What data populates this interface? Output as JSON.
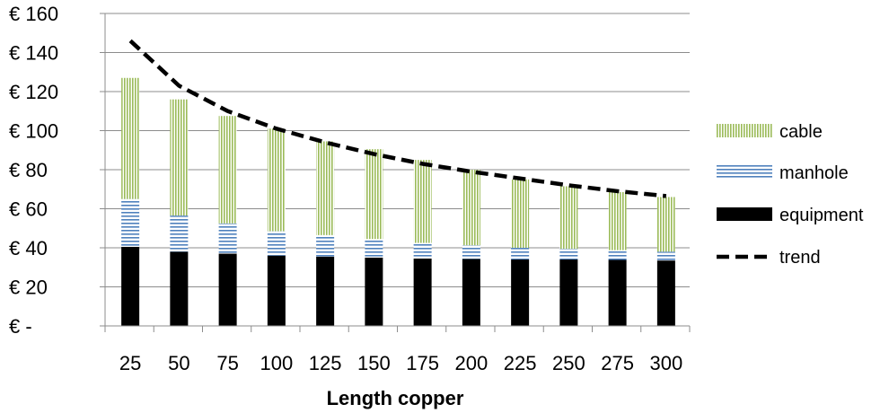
{
  "chart_data": {
    "type": "bar",
    "stacked": true,
    "xlabel": "Length copper",
    "categories": [
      "25",
      "50",
      "75",
      "100",
      "125",
      "150",
      "175",
      "200",
      "225",
      "250",
      "275",
      "300"
    ],
    "y_tick_labels": [
      "€ -",
      "€ 20",
      "€ 40",
      "€ 60",
      "€ 80",
      "€ 100",
      "€ 120",
      "€ 140",
      "€ 160"
    ],
    "ylim": [
      0,
      160
    ],
    "grid": true,
    "legend": "right",
    "series": [
      {
        "name": "equipment",
        "kind": "bar",
        "color": "#000000",
        "values": [
          40.5,
          38,
          37,
          36,
          35.5,
          35,
          34.5,
          34.3,
          34,
          34,
          33.8,
          33.5
        ]
      },
      {
        "name": "manhole",
        "kind": "bar",
        "color": "#4f81bd",
        "values": [
          24.5,
          18.5,
          15.5,
          12.5,
          11,
          9.5,
          8,
          7,
          6,
          5.5,
          5,
          4.5
        ]
      },
      {
        "name": "cable",
        "kind": "bar",
        "color": "#9bbb59",
        "values": [
          62,
          59.5,
          55,
          52.5,
          48,
          46,
          42.5,
          38.7,
          35,
          32,
          29.7,
          28
        ]
      },
      {
        "name": "trend",
        "kind": "line",
        "color": "#000000",
        "dash": "dashed",
        "values": [
          146,
          123,
          110,
          101,
          94,
          88,
          83,
          79,
          75.5,
          72,
          69,
          66.5
        ]
      }
    ]
  }
}
